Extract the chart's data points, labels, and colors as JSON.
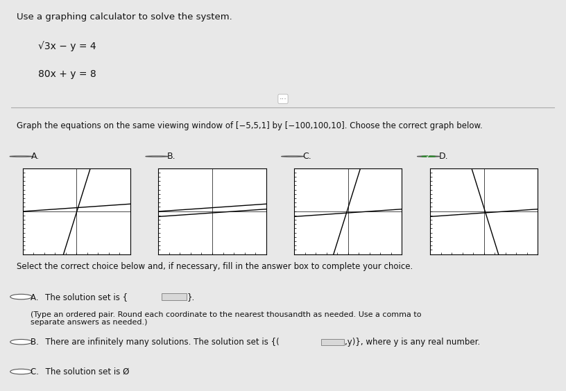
{
  "title_text": "Use a graphing calculator to solve the system.",
  "eq1": "√3x − y = 4",
  "eq2": "80x + y = 8",
  "graph_instruction": "Graph the equations on the same viewing window of [−5,5,1] by [−100,100,10]. Choose the correct graph below.",
  "options": [
    "A.",
    "B.",
    "C.",
    "D."
  ],
  "correct_option": "D",
  "xmin": -5,
  "xmax": 5,
  "xstep": 1,
  "ymin": -100,
  "ymax": 100,
  "ystep": 10,
  "bg_color": "#e8e8e8",
  "panel_bg": "#f2f2f2",
  "line1_color": "#222222",
  "line2_color": "#555555",
  "select_text": "Select the correct choice below and, if necessary, fill in the answer box to complete your choice.",
  "choiceA_sub": "(Type an ordered pair. Round each coordinate to the nearest thousandth as needed. Use a comma to\nseparate answers as needed.)"
}
